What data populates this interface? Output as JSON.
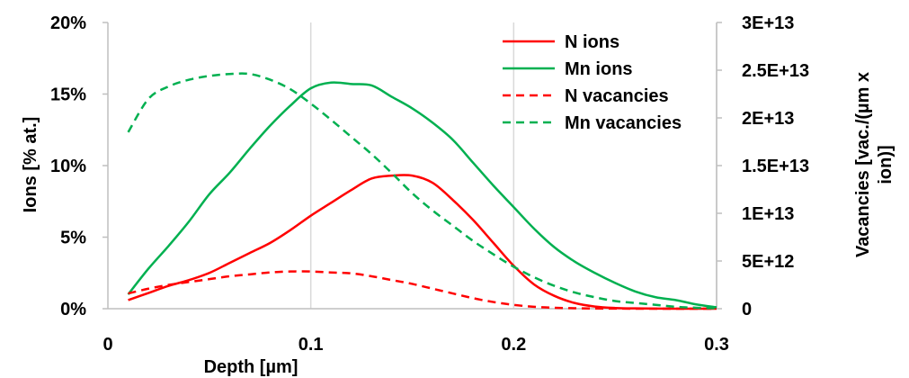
{
  "chart_data": {
    "type": "line",
    "xlabel": "Depth [µm]",
    "ylabel_left": "Ions [% at.]",
    "ylabel_right_lines": [
      "Vacancies  [vac./(µm x",
      "ion)]"
    ],
    "xlim": [
      0,
      0.3
    ],
    "ylim_left": [
      0,
      20
    ],
    "ylim_right": [
      0,
      30000000000000
    ],
    "x_ticks": [
      {
        "value": 0,
        "label": "0"
      },
      {
        "value": 0.1,
        "label": "0.1"
      },
      {
        "value": 0.2,
        "label": "0.2"
      },
      {
        "value": 0.3,
        "label": "0.3"
      }
    ],
    "y_left_ticks": [
      {
        "value": 0,
        "label": "0%"
      },
      {
        "value": 5,
        "label": "5%"
      },
      {
        "value": 10,
        "label": "10%"
      },
      {
        "value": 15,
        "label": "15%"
      },
      {
        "value": 20,
        "label": "20%"
      }
    ],
    "y_right_ticks": [
      {
        "value": 0,
        "label": "0"
      },
      {
        "value": 5000000000000,
        "label": "5E+12"
      },
      {
        "value": 10000000000000,
        "label": "1E+13"
      },
      {
        "value": 15000000000000,
        "label": "1.5E+13"
      },
      {
        "value": 20000000000000,
        "label": "2E+13"
      },
      {
        "value": 25000000000000,
        "label": "2.5E+13"
      },
      {
        "value": 30000000000000,
        "label": "3E+13"
      }
    ],
    "grid": "vertical",
    "legend_position": "top-right",
    "series": [
      {
        "name": "N ions",
        "axis": "left",
        "color": "#ff0000",
        "style": "solid",
        "x": [
          0.01,
          0.02,
          0.03,
          0.04,
          0.05,
          0.06,
          0.07,
          0.08,
          0.09,
          0.1,
          0.11,
          0.12,
          0.13,
          0.14,
          0.15,
          0.16,
          0.17,
          0.18,
          0.19,
          0.2,
          0.21,
          0.22,
          0.23,
          0.24,
          0.25,
          0.26,
          0.27,
          0.28,
          0.29,
          0.3
        ],
        "y": [
          0.6,
          1.1,
          1.6,
          2.0,
          2.5,
          3.2,
          3.9,
          4.6,
          5.5,
          6.5,
          7.4,
          8.3,
          9.1,
          9.3,
          9.3,
          8.8,
          7.6,
          6.2,
          4.6,
          3.0,
          1.7,
          0.9,
          0.4,
          0.15,
          0.05,
          0.02,
          0.01,
          0.0,
          0.0,
          0.0
        ]
      },
      {
        "name": "Mn ions",
        "axis": "left",
        "color": "#00b050",
        "style": "solid",
        "x": [
          0.01,
          0.02,
          0.03,
          0.04,
          0.05,
          0.06,
          0.07,
          0.08,
          0.09,
          0.1,
          0.11,
          0.12,
          0.13,
          0.14,
          0.15,
          0.16,
          0.17,
          0.18,
          0.19,
          0.2,
          0.21,
          0.22,
          0.23,
          0.24,
          0.25,
          0.26,
          0.27,
          0.28,
          0.29,
          0.3
        ],
        "y": [
          1.0,
          2.8,
          4.4,
          6.1,
          8.0,
          9.5,
          11.2,
          12.8,
          14.2,
          15.4,
          15.8,
          15.7,
          15.6,
          14.8,
          14.0,
          13.0,
          11.8,
          10.2,
          8.6,
          7.1,
          5.6,
          4.3,
          3.3,
          2.5,
          1.8,
          1.2,
          0.8,
          0.6,
          0.3,
          0.1
        ]
      },
      {
        "name": "N vacancies",
        "axis": "right",
        "color": "#ff0000",
        "style": "dashed",
        "x": [
          0.01,
          0.02,
          0.03,
          0.04,
          0.05,
          0.06,
          0.07,
          0.08,
          0.09,
          0.1,
          0.11,
          0.12,
          0.13,
          0.14,
          0.15,
          0.16,
          0.17,
          0.18,
          0.19,
          0.2,
          0.21,
          0.22,
          0.23,
          0.24,
          0.25,
          0.26,
          0.27,
          0.28,
          0.29,
          0.3
        ],
        "y": [
          1600000000000,
          2100000000000,
          2500000000000,
          2800000000000,
          3100000000000,
          3400000000000,
          3600000000000,
          3800000000000,
          3900000000000,
          3900000000000,
          3800000000000,
          3700000000000,
          3400000000000,
          3000000000000,
          2600000000000,
          2100000000000,
          1600000000000,
          1100000000000,
          700000000000,
          400000000000,
          200000000000,
          100000000000,
          50000000000,
          20000000000,
          10000000000,
          0,
          0,
          0,
          0,
          0
        ]
      },
      {
        "name": "Mn vacancies",
        "axis": "right",
        "color": "#00b050",
        "style": "dashed",
        "x": [
          0.01,
          0.02,
          0.03,
          0.04,
          0.05,
          0.06,
          0.07,
          0.08,
          0.09,
          0.1,
          0.11,
          0.12,
          0.13,
          0.14,
          0.15,
          0.16,
          0.17,
          0.18,
          0.19,
          0.2,
          0.21,
          0.22,
          0.23,
          0.24,
          0.25,
          0.26,
          0.27,
          0.28,
          0.29,
          0.3
        ],
        "y": [
          18500000000000,
          22000000000000,
          23300000000000,
          24000000000000,
          24400000000000,
          24600000000000,
          24600000000000,
          24000000000000,
          23000000000000,
          21500000000000,
          19800000000000,
          18000000000000,
          16200000000000,
          14200000000000,
          12100000000000,
          10300000000000,
          8700000000000,
          7100000000000,
          5700000000000,
          4400000000000,
          3300000000000,
          2400000000000,
          1700000000000,
          1200000000000,
          800000000000,
          600000000000,
          400000000000,
          200000000000,
          100000000000,
          50000000000
        ]
      }
    ]
  }
}
